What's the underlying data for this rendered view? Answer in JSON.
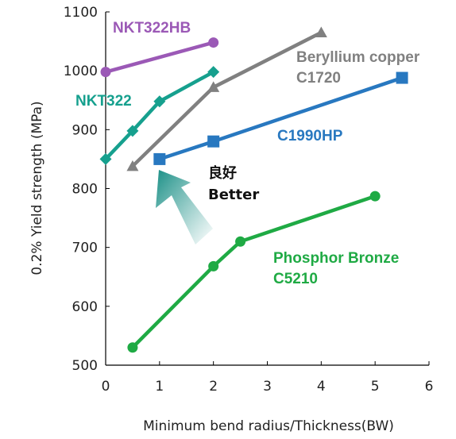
{
  "chart_data": {
    "type": "line",
    "title": "",
    "xlabel": "Minimum bend radius/Thickness(BW)",
    "ylabel": "0.2% Yield strength (MPa)",
    "xlim": [
      0,
      6
    ],
    "ylim": [
      500,
      1100
    ],
    "x_ticks": [
      0,
      1,
      2,
      3,
      4,
      5,
      6
    ],
    "y_ticks": [
      500,
      600,
      700,
      800,
      900,
      1000,
      1100
    ],
    "grid": false,
    "series": [
      {
        "name": "NKT322HB",
        "label_lines": [
          "NKT322HB"
        ],
        "color": "#9b59b6",
        "marker": "circle",
        "x": [
          0,
          2
        ],
        "y": [
          998,
          1048
        ]
      },
      {
        "name": "NKT322",
        "label_lines": [
          "NKT322"
        ],
        "color": "#16a08e",
        "marker": "diamond",
        "x": [
          0,
          0.5,
          1,
          2
        ],
        "y": [
          850,
          898,
          948,
          998
        ]
      },
      {
        "name": "Beryllium copper C1720",
        "label_lines": [
          "Beryllium copper",
          "C1720"
        ],
        "color": "#808080",
        "marker": "triangle",
        "x": [
          0.5,
          2,
          4
        ],
        "y": [
          838,
          972,
          1065
        ]
      },
      {
        "name": "C1990HP",
        "label_lines": [
          "C1990HP"
        ],
        "color": "#2878c0",
        "marker": "square",
        "x": [
          1,
          2,
          5.5
        ],
        "y": [
          850,
          880,
          988
        ]
      },
      {
        "name": "Phosphor Bronze C5210",
        "label_lines": [
          "Phosphor Bronze",
          "C5210"
        ],
        "color": "#1faa44",
        "marker": "circle",
        "x": [
          0.5,
          2,
          2.5,
          5
        ],
        "y": [
          530,
          668,
          710,
          787
        ]
      }
    ],
    "annotation": {
      "lines": [
        "良好",
        "Better"
      ],
      "arrow": "gradient arrow pointing up-left toward better properties"
    }
  }
}
